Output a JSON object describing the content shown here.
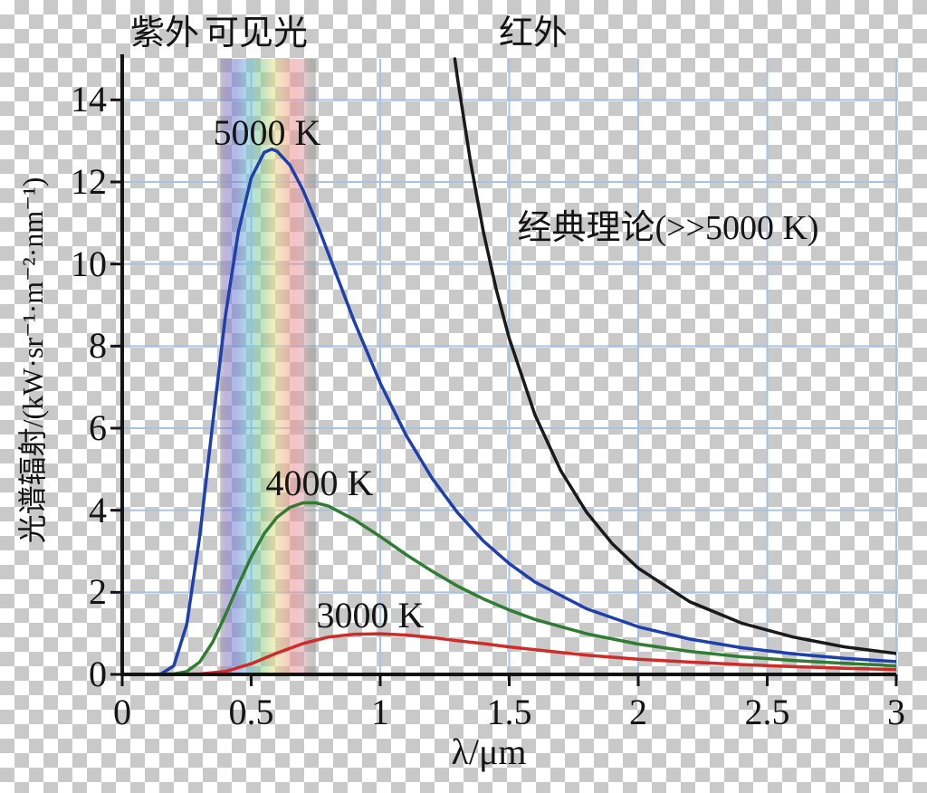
{
  "chart_data": {
    "type": "line",
    "title": "",
    "xlabel": "λ/μm",
    "ylabel": "光谱辐射/(kW·sr⁻¹·m⁻²·nm⁻¹)",
    "xlim": [
      0,
      3
    ],
    "ylim": [
      0,
      15
    ],
    "grid": true,
    "grid_color": "#a9c4e1",
    "axis_color": "#141414",
    "x_ticks": [
      0,
      0.5,
      1,
      1.5,
      2,
      2.5,
      3
    ],
    "x_tick_labels": [
      "0",
      "0.5",
      "1",
      "1.5",
      "2",
      "2.5",
      "3"
    ],
    "y_ticks": [
      0,
      2,
      4,
      6,
      8,
      10,
      12,
      14
    ],
    "y_tick_labels": [
      "0",
      "2",
      "4",
      "6",
      "8",
      "10",
      "12",
      "14"
    ],
    "visible_band": {
      "from": 0.38,
      "to": 0.75,
      "opacity": 0.55,
      "stops": [
        [
          "0%",
          "#98949e"
        ],
        [
          "6%",
          "#8d7ac0"
        ],
        [
          "16%",
          "#6f7fd4"
        ],
        [
          "30%",
          "#72c4d8"
        ],
        [
          "44%",
          "#8fd08a"
        ],
        [
          "56%",
          "#e3e08a"
        ],
        [
          "66%",
          "#eebe8a"
        ],
        [
          "76%",
          "#ee9090"
        ],
        [
          "86%",
          "#dfa0a8"
        ],
        [
          "94%",
          "#a09a9a"
        ],
        [
          "100%",
          "#969696"
        ]
      ]
    },
    "annotations": {
      "uv": "紫外",
      "visible": "可见光",
      "ir": "红外",
      "classical": "经典理论(>>5000 K)",
      "t5000": "5000 K",
      "t4000": "4000 K",
      "t3000": "3000 K"
    },
    "series": [
      {
        "id": "curve-5000k",
        "name": "5000 K",
        "color": "#1e3fae",
        "x": [
          0.05,
          0.1,
          0.15,
          0.2,
          0.25,
          0.3,
          0.35,
          0.4,
          0.45,
          0.5,
          0.55,
          0.58,
          0.6,
          0.65,
          0.7,
          0.75,
          0.8,
          0.9,
          1.0,
          1.1,
          1.2,
          1.3,
          1.4,
          1.5,
          1.6,
          1.8,
          2.0,
          2.2,
          2.4,
          2.6,
          2.8,
          3.0
        ],
        "y": [
          0,
          0,
          0.01,
          0.21,
          1.22,
          3.35,
          6.09,
          8.74,
          10.79,
          12.1,
          12.72,
          12.8,
          12.75,
          12.41,
          11.81,
          11.06,
          10.24,
          8.59,
          7.1,
          5.83,
          4.79,
          3.94,
          3.25,
          2.7,
          2.25,
          1.6,
          1.16,
          0.86,
          0.65,
          0.5,
          0.39,
          0.31
        ]
      },
      {
        "id": "curve-4000k",
        "name": "4000 K",
        "color": "#2e7d32",
        "x": [
          0.1,
          0.2,
          0.25,
          0.3,
          0.35,
          0.4,
          0.45,
          0.5,
          0.55,
          0.6,
          0.65,
          0.7,
          0.75,
          0.8,
          0.9,
          1.0,
          1.1,
          1.2,
          1.3,
          1.4,
          1.5,
          1.6,
          1.8,
          2.0,
          2.2,
          2.4,
          2.6,
          2.8,
          3.0
        ],
        "y": [
          0,
          0.01,
          0.07,
          0.3,
          0.78,
          1.45,
          2.18,
          2.86,
          3.43,
          3.83,
          4.07,
          4.18,
          4.18,
          4.1,
          3.77,
          3.36,
          2.92,
          2.52,
          2.15,
          1.84,
          1.57,
          1.34,
          0.99,
          0.74,
          0.56,
          0.43,
          0.34,
          0.27,
          0.21
        ]
      },
      {
        "id": "curve-3000k",
        "name": "3000 K",
        "color": "#cf2b27",
        "x": [
          0.2,
          0.3,
          0.4,
          0.5,
          0.6,
          0.7,
          0.8,
          0.9,
          1.0,
          1.1,
          1.2,
          1.3,
          1.4,
          1.5,
          1.6,
          1.8,
          2.0,
          2.2,
          2.4,
          2.6,
          2.8,
          3.0
        ],
        "y": [
          0,
          0.01,
          0.07,
          0.26,
          0.52,
          0.75,
          0.91,
          0.98,
          0.99,
          0.96,
          0.9,
          0.82,
          0.75,
          0.67,
          0.6,
          0.47,
          0.37,
          0.3,
          0.24,
          0.19,
          0.15,
          0.12
        ]
      },
      {
        "id": "curve-classical",
        "name": "经典理论(>>5000 K)",
        "color": "#1a1a1a",
        "x": [
          1.289,
          1.3,
          1.35,
          1.4,
          1.45,
          1.5,
          1.6,
          1.7,
          1.8,
          1.9,
          2.0,
          2.2,
          2.4,
          2.6,
          2.8,
          3.0
        ],
        "y": [
          15.0,
          14.51,
          12.48,
          10.78,
          9.37,
          8.19,
          6.32,
          4.96,
          3.95,
          3.18,
          2.59,
          1.77,
          1.25,
          0.91,
          0.67,
          0.51
        ]
      }
    ]
  }
}
